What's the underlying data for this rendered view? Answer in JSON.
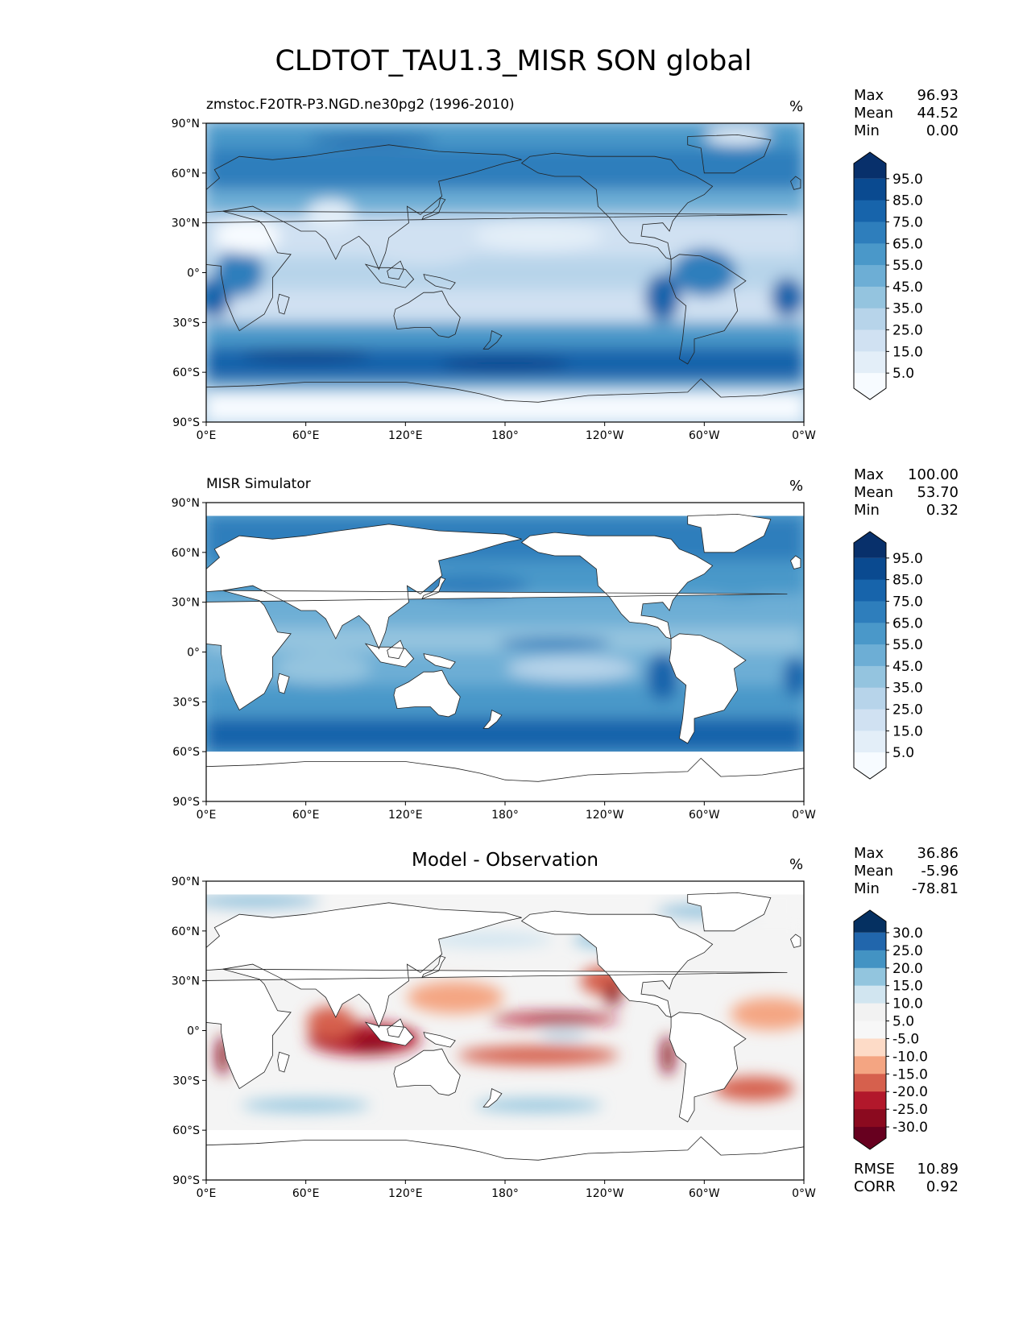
{
  "title": "CLDTOT_TAU1.3_MISR SON global",
  "x_ticks": [
    "0°E",
    "60°E",
    "120°E",
    "180°",
    "120°W",
    "60°W",
    "0°W"
  ],
  "y_ticks": [
    "90°N",
    "60°N",
    "30°N",
    "0°",
    "30°S",
    "60°S",
    "90°S"
  ],
  "panels": [
    {
      "title": "zmstoc.F20TR-P3.NGD.ne30pg2 (1996-2010)",
      "unit": "%",
      "stats": {
        "max_label": "Max",
        "max": "96.93",
        "mean_label": "Mean",
        "mean": "44.52",
        "min_label": "Min",
        "min": "0.00"
      },
      "colorbar": {
        "labels": [
          "95.0",
          "85.0",
          "75.0",
          "65.0",
          "55.0",
          "45.0",
          "35.0",
          "25.0",
          "15.0",
          "5.0"
        ],
        "colors": [
          "#08306b",
          "#0a4a90",
          "#1764ab",
          "#2e7ebc",
          "#4a98c9",
          "#6daed5",
          "#94c4df",
          "#b7d4ea",
          "#d0e1f2",
          "#e3eef8",
          "#f7fbff"
        ]
      }
    },
    {
      "title": "MISR Simulator",
      "unit": "%",
      "stats": {
        "max_label": "Max",
        "max": "100.00",
        "mean_label": "Mean",
        "mean": "53.70",
        "min_label": "Min",
        "min": "0.32"
      },
      "colorbar": {
        "labels": [
          "95.0",
          "85.0",
          "75.0",
          "65.0",
          "55.0",
          "45.0",
          "35.0",
          "25.0",
          "15.0",
          "5.0"
        ],
        "colors": [
          "#08306b",
          "#0a4a90",
          "#1764ab",
          "#2e7ebc",
          "#4a98c9",
          "#6daed5",
          "#94c4df",
          "#b7d4ea",
          "#d0e1f2",
          "#e3eef8",
          "#f7fbff"
        ]
      }
    },
    {
      "title": "Model - Observation",
      "unit": "%",
      "stats": {
        "max_label": "Max",
        "max": "36.86",
        "mean_label": "Mean",
        "mean": "-5.96",
        "min_label": "Min",
        "min": "-78.81"
      },
      "metrics": {
        "rmse_label": "RMSE",
        "rmse": "10.89",
        "corr_label": "CORR",
        "corr": "0.92"
      },
      "colorbar": {
        "labels": [
          "30.0",
          "25.0",
          "20.0",
          "15.0",
          "10.0",
          "5.0",
          "-5.0",
          "-10.0",
          "-15.0",
          "-20.0",
          "-25.0",
          "-30.0"
        ],
        "colors": [
          "#053061",
          "#2166ac",
          "#4393c3",
          "#92c5de",
          "#d1e5f0",
          "#f2f2f2",
          "#f7f7f7",
          "#fddbc7",
          "#f4a582",
          "#d6604d",
          "#b2182b",
          "#8b0a1f",
          "#67001f"
        ]
      }
    }
  ]
}
